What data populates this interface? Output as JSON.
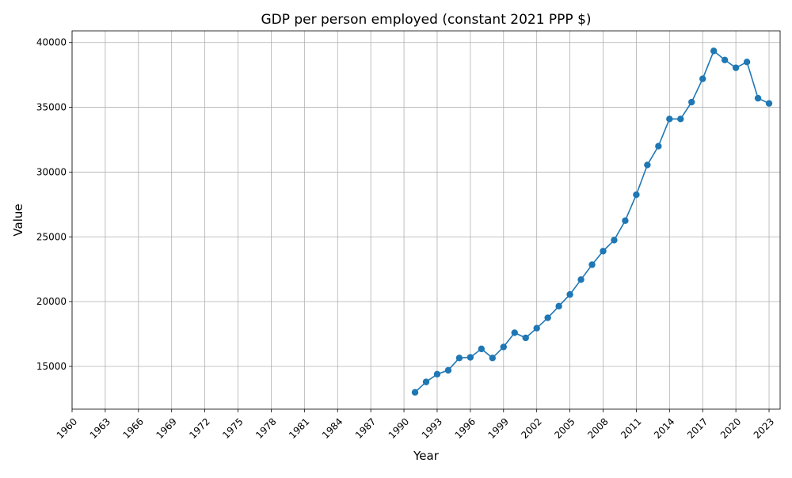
{
  "chart_data": {
    "type": "line",
    "title": "GDP per person employed (constant 2021 PPP $)",
    "xlabel": "Year",
    "ylabel": "Value",
    "xlim": [
      1960,
      2024
    ],
    "ylim": [
      11700,
      40900
    ],
    "x_ticks": [
      1960,
      1963,
      1966,
      1969,
      1972,
      1975,
      1978,
      1981,
      1984,
      1987,
      1990,
      1993,
      1996,
      1999,
      2002,
      2005,
      2008,
      2011,
      2014,
      2017,
      2020,
      2023
    ],
    "y_ticks": [
      15000,
      20000,
      25000,
      30000,
      35000,
      40000
    ],
    "grid": true,
    "series": [
      {
        "color": "#1f77b4",
        "marker": "circle",
        "x": [
          1991,
          1992,
          1993,
          1994,
          1995,
          1996,
          1997,
          1998,
          1999,
          2000,
          2001,
          2002,
          2003,
          2004,
          2005,
          2006,
          2007,
          2008,
          2009,
          2010,
          2011,
          2012,
          2013,
          2014,
          2015,
          2016,
          2017,
          2018,
          2019,
          2020,
          2021,
          2022,
          2023
        ],
        "y": [
          13000,
          13800,
          14400,
          14700,
          15650,
          15700,
          16350,
          15650,
          16500,
          17600,
          17200,
          17950,
          18750,
          19650,
          20550,
          21700,
          22850,
          23900,
          24750,
          26250,
          28250,
          30550,
          32000,
          34100,
          34100,
          35400,
          37200,
          39350,
          38650,
          38050,
          38500,
          35700,
          35300
        ]
      }
    ]
  }
}
